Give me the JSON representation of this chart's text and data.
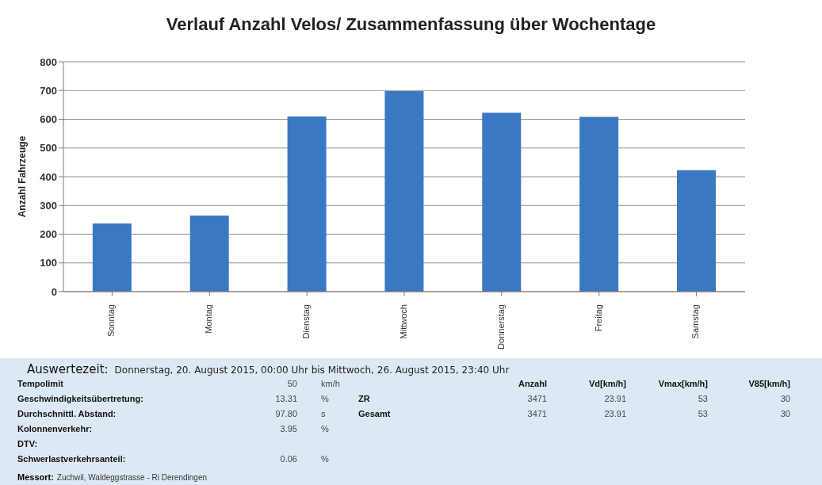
{
  "chart_data": {
    "type": "bar",
    "title": "Verlauf Anzahl Velos/ Zusammenfassung über Wochentage",
    "ylabel": "Anzahl Fahrzeuge",
    "categories": [
      "Sonntag",
      "Montag",
      "Dienstag",
      "Mittwoch",
      "Donnerstag",
      "Freitag",
      "Samstag"
    ],
    "values": [
      237,
      265,
      610,
      698,
      623,
      608,
      423
    ],
    "color": "#3a78c4",
    "ylim": [
      0,
      800
    ],
    "yticks": [
      0,
      100,
      200,
      300,
      400,
      500,
      600,
      700,
      800
    ],
    "grid": "y",
    "annotations": [
      "Auswertezeit:",
      "Donnerstag, 20. August 2015, 00:00 Uhr bis  Mittwoch, 26. August 2015, 23:40 Uhr",
      "Tempolimit",
      "50",
      "km/h",
      "Anzahl",
      "Vd[km/h]",
      "Vmax[km/h]",
      "V85[km/h]",
      "Geschwindigkeitsübertretung:",
      "13.31",
      "%",
      "ZR",
      "3471",
      "23.91",
      "53",
      "30",
      "Durchschnittl. Abstand:",
      "97.80",
      "s",
      "Gesamt",
      "3471",
      "23.91",
      "53",
      "30",
      "Kolonnenverkehr:",
      "3.95",
      "%",
      "DTV:",
      "Schwerlastverkehrsanteil:",
      "0.06",
      "%",
      "Messort:",
      "Zuchwil, Waldeggstrasse - Ri Derendingen"
    ]
  }
}
